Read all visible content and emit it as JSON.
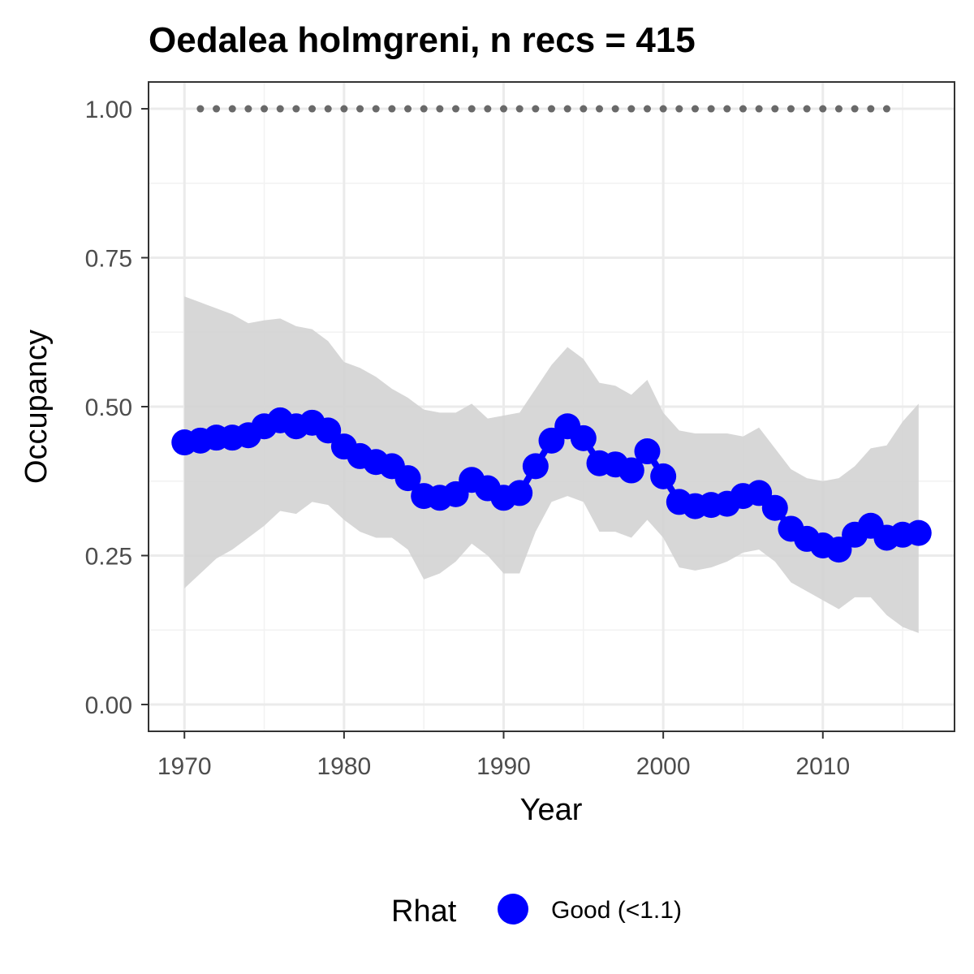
{
  "chart_data": {
    "type": "line",
    "title": "Oedalea holmgreni, n recs = 415",
    "xlabel": "Year",
    "ylabel": "Occupancy",
    "xlim": [
      1967.8,
      1917.4
    ],
    "ylim": [
      -0.045,
      1.045
    ],
    "x_ticks": [
      1970,
      1980,
      1990,
      2000,
      2010
    ],
    "x_tick_labels": [
      "1970",
      "1980",
      "1990",
      "2000",
      "2010"
    ],
    "y_ticks": [
      0,
      0.25,
      0.5,
      0.75,
      1.0
    ],
    "y_tick_labels": [
      "0.00",
      "0.25",
      "0.50",
      "0.75",
      "1.00"
    ],
    "grid": true,
    "x": [
      1970,
      1971,
      1972,
      1973,
      1974,
      1975,
      1976,
      1977,
      1978,
      1979,
      1980,
      1981,
      1982,
      1983,
      1984,
      1985,
      1986,
      1987,
      1988,
      1989,
      1990,
      1991,
      1992,
      1993,
      1994,
      1995,
      1996,
      1997,
      1998,
      1999,
      2000,
      2001,
      2002,
      2003,
      2004,
      2005,
      2006,
      2007,
      2008,
      2009,
      2010,
      2011,
      2012,
      2013,
      2014,
      2015,
      2016
    ],
    "series": [
      {
        "name": "Good (<1.1)",
        "color": "#0000ff",
        "values": [
          0.44,
          0.443,
          0.448,
          0.448,
          0.452,
          0.467,
          0.477,
          0.467,
          0.473,
          0.46,
          0.433,
          0.417,
          0.407,
          0.4,
          0.38,
          0.35,
          0.347,
          0.353,
          0.377,
          0.363,
          0.347,
          0.355,
          0.4,
          0.443,
          0.467,
          0.447,
          0.405,
          0.403,
          0.393,
          0.425,
          0.383,
          0.34,
          0.333,
          0.335,
          0.337,
          0.35,
          0.355,
          0.33,
          0.295,
          0.278,
          0.267,
          0.26,
          0.285,
          0.3,
          0.28,
          0.285,
          0.288
        ]
      }
    ],
    "ci_lower": [
      0.195,
      0.22,
      0.245,
      0.26,
      0.28,
      0.3,
      0.325,
      0.32,
      0.34,
      0.335,
      0.31,
      0.29,
      0.28,
      0.28,
      0.26,
      0.21,
      0.22,
      0.24,
      0.27,
      0.25,
      0.22,
      0.22,
      0.29,
      0.34,
      0.35,
      0.34,
      0.29,
      0.29,
      0.28,
      0.31,
      0.28,
      0.23,
      0.225,
      0.23,
      0.24,
      0.255,
      0.26,
      0.24,
      0.205,
      0.19,
      0.175,
      0.16,
      0.18,
      0.18,
      0.15,
      0.13,
      0.12
    ],
    "ci_upper": [
      0.685,
      0.675,
      0.665,
      0.655,
      0.64,
      0.645,
      0.648,
      0.635,
      0.63,
      0.61,
      0.575,
      0.565,
      0.55,
      0.53,
      0.515,
      0.495,
      0.49,
      0.49,
      0.505,
      0.48,
      0.485,
      0.49,
      0.53,
      0.57,
      0.6,
      0.58,
      0.54,
      0.535,
      0.52,
      0.545,
      0.49,
      0.46,
      0.455,
      0.455,
      0.455,
      0.45,
      0.465,
      0.43,
      0.395,
      0.38,
      0.375,
      0.38,
      0.4,
      0.43,
      0.435,
      0.475,
      0.505
    ],
    "ci_color": "#d3d3d3",
    "rhat_marker": {
      "y": 1.0,
      "x_start": 1971,
      "x_end": 2014,
      "color": "#696969"
    },
    "legend": {
      "title": "Rhat",
      "position": "bottom",
      "items": [
        {
          "label": "Good (<1.1)",
          "color": "#0000ff"
        }
      ]
    }
  }
}
